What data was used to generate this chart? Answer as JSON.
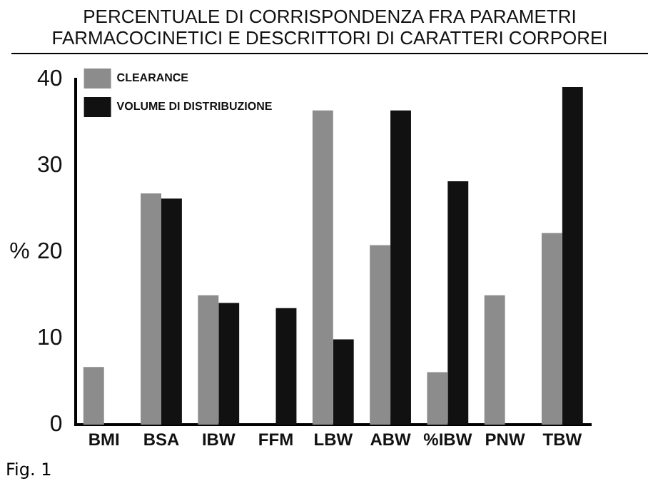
{
  "chart_data": {
    "type": "bar",
    "title": "PERCENTUALE DI CORRISPONDENZA FRA PARAMETRI FARMACOCINETICI E DESCRITTORI DI CARATTERI CORPOREI",
    "ylabel": "%",
    "categories": [
      "BMI",
      "BSA",
      "IBW",
      "FFM",
      "LBW",
      "ABW",
      "%IBW",
      "PNW",
      "TBW"
    ],
    "series": [
      {
        "name": "CLEARANCE",
        "color": "#8c8c8c",
        "values": [
          6.7,
          26.8,
          15,
          null,
          36.4,
          20.8,
          6.1,
          15,
          22.2
        ]
      },
      {
        "name": "VOLUME DI DISTRIBUZIONE",
        "color": "#111111",
        "values": [
          null,
          26.2,
          14.1,
          13.5,
          9.9,
          36.4,
          28.2,
          null,
          39.1
        ]
      }
    ],
    "ylim": [
      0,
      40
    ],
    "yticks": [
      0,
      10,
      20,
      30,
      40
    ],
    "grid": false,
    "legend": "top left",
    "annotations": [
      "Fig. 1"
    ]
  }
}
